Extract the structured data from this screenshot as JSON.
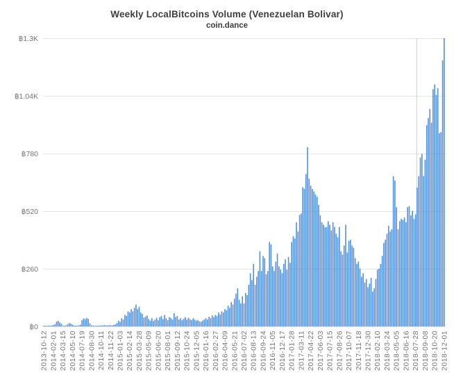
{
  "chart_data": {
    "type": "bar",
    "title": "Weekly LocalBitcoins Volume (Venezuelan Bolivar)",
    "subtitle": "coin.dance",
    "currency_symbol": "฿",
    "ylim": [
      0,
      1300
    ],
    "grid": "horizontal",
    "legend_position": "none",
    "bar_color": "#4d90e8",
    "grid_color": "#e4e4e4",
    "axis_label_color": "#757575",
    "title_color": "#3d3d3d",
    "annotation_line": {
      "x_index": 235,
      "color": "#cccccc"
    },
    "y_ticks": [
      {
        "value": 0,
        "label": "฿0"
      },
      {
        "value": 260,
        "label": "฿260"
      },
      {
        "value": 520,
        "label": "฿520"
      },
      {
        "value": 780,
        "label": "฿780"
      },
      {
        "value": 1040,
        "label": "฿1.04K"
      },
      {
        "value": 1300,
        "label": "฿1.3K"
      }
    ],
    "label_every": 6,
    "x_tick_labels": [
      "2013-10-12",
      "2014-02-01",
      "2014-03-15",
      "2014-05-10",
      "2014-07-19",
      "2014-08-30",
      "2014-10-11",
      "2014-11-22",
      "2015-01-03",
      "2015-02-14",
      "2015-03-28",
      "2015-05-09",
      "2015-06-20",
      "2015-08-01",
      "2015-09-12",
      "2015-10-24",
      "2015-12-05",
      "2016-01-16",
      "2016-02-27",
      "2016-04-09",
      "2016-05-21",
      "2016-07-02",
      "2016-08-13",
      "2016-09-24",
      "2016-11-05",
      "2016-12-17",
      "2017-01-28",
      "2017-03-11",
      "2017-04-22",
      "2017-06-03",
      "2017-07-15",
      "2017-08-26",
      "2017-10-07",
      "2017-11-18",
      "2017-12-30",
      "2018-02-10",
      "2018-03-24",
      "2018-05-05",
      "2018-06-16",
      "2018-07-28",
      "2018-09-08",
      "2018-10-20",
      "2018-12-01"
    ],
    "values": [
      2,
      3,
      2,
      4,
      3,
      5,
      6,
      10,
      22,
      25,
      18,
      12,
      4,
      3,
      5,
      10,
      15,
      13,
      8,
      4,
      3,
      4,
      5,
      8,
      28,
      36,
      33,
      38,
      34,
      14,
      5,
      4,
      3,
      4,
      3,
      4,
      5,
      4,
      6,
      5,
      4,
      5,
      6,
      5,
      7,
      9,
      15,
      26,
      21,
      37,
      31,
      52,
      47,
      68,
      63,
      78,
      68,
      84,
      99,
      78,
      89,
      63,
      57,
      40,
      45,
      49,
      33,
      26,
      37,
      24,
      31,
      39,
      28,
      42,
      47,
      33,
      52,
      37,
      28,
      42,
      37,
      31,
      60,
      42,
      47,
      31,
      37,
      28,
      34,
      42,
      31,
      39,
      33,
      28,
      37,
      31,
      26,
      29,
      23,
      21,
      26,
      31,
      37,
      31,
      44,
      37,
      50,
      42,
      52,
      47,
      63,
      54,
      68,
      63,
      78,
      73,
      94,
      84,
      110,
      99,
      125,
      148,
      172,
      120,
      104,
      136,
      104,
      151,
      141,
      188,
      240,
      209,
      282,
      188,
      224,
      250,
      339,
      250,
      318,
      308,
      235,
      250,
      381,
      370,
      271,
      250,
      292,
      329,
      271,
      256,
      240,
      282,
      303,
      256,
      313,
      287,
      381,
      407,
      397,
      470,
      428,
      503,
      509,
      628,
      621,
      687,
      808,
      666,
      635,
      620,
      609,
      595,
      585,
      548,
      501,
      470,
      459,
      447,
      449,
      475,
      459,
      433,
      470,
      449,
      418,
      402,
      449,
      339,
      324,
      365,
      459,
      334,
      386,
      391,
      365,
      355,
      308,
      282,
      292,
      261,
      224,
      240,
      198,
      214,
      177,
      193,
      219,
      157,
      172,
      214,
      256,
      261,
      282,
      318,
      376,
      391,
      418,
      454,
      428,
      438,
      678,
      658,
      538,
      438,
      475,
      485,
      480,
      491,
      470,
      538,
      543,
      501,
      522,
      485,
      506,
      626,
      678,
      762,
      778,
      678,
      752,
      908,
      940,
      981,
      919,
      1070,
      1091,
      1044,
      1075,
      872,
      877,
      1200,
      1300
    ]
  }
}
